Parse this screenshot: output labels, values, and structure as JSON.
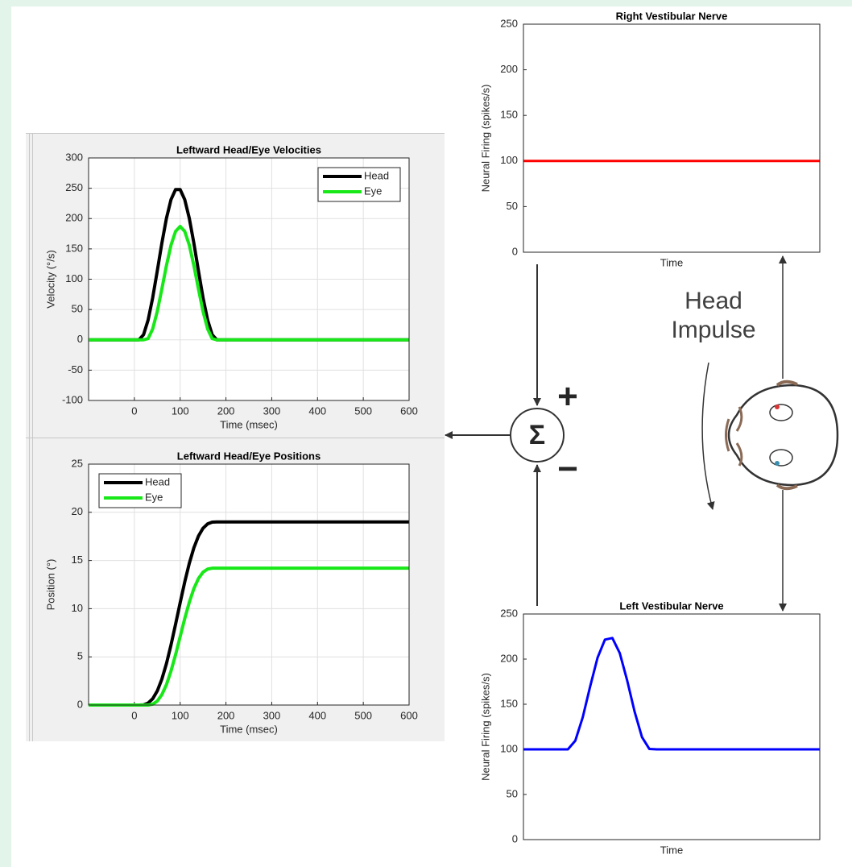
{
  "chart_data": [
    {
      "type": "line",
      "title": "Leftward  Head/Eye Velocities",
      "xlabel": "Time (msec)",
      "ylabel": "Velocity (°/s)",
      "x": [
        -100,
        0,
        10,
        20,
        30,
        40,
        50,
        60,
        70,
        80,
        90,
        100,
        110,
        120,
        130,
        140,
        150,
        160,
        170,
        180,
        600
      ],
      "series": [
        {
          "name": "Head",
          "color": "#000000",
          "values": [
            0,
            0,
            0,
            8.4,
            32.6,
            69.3,
            113.5,
            159.2,
            200.3,
            231.3,
            247.9,
            247.9,
            231.3,
            200.3,
            159.2,
            113.5,
            69.3,
            32.6,
            8.4,
            0,
            0
          ]
        },
        {
          "name": "Eye",
          "color": "#18e818",
          "values": [
            0,
            0,
            0,
            0,
            2.0,
            17.9,
            46.8,
            83.7,
            122.4,
            156.1,
            178.9,
            187,
            178.9,
            156.1,
            122.4,
            83.7,
            46.8,
            17.9,
            2.0,
            0,
            0
          ]
        }
      ],
      "xlim": [
        -100,
        600
      ],
      "xticks": [
        0,
        100,
        200,
        300,
        400,
        500,
        600
      ],
      "ylim": [
        -100,
        300
      ],
      "yticks": [
        -100,
        -50,
        0,
        50,
        100,
        150,
        200,
        250,
        300
      ],
      "grid": true,
      "legend": "upper right"
    },
    {
      "type": "line",
      "title": "Leftward  Head/Eye Positions",
      "xlabel": "Time (msec)",
      "ylabel": "Position (°)",
      "x": [
        -100,
        0,
        10,
        20,
        30,
        40,
        50,
        60,
        70,
        80,
        90,
        100,
        110,
        120,
        130,
        140,
        150,
        160,
        170,
        180,
        600
      ],
      "series": [
        {
          "name": "Head",
          "color": "#000000",
          "values": [
            0,
            0,
            0,
            0.02,
            0.2,
            0.65,
            1.46,
            2.68,
            4.29,
            6.23,
            8.39,
            10.61,
            12.77,
            14.71,
            16.32,
            17.54,
            18.35,
            18.8,
            18.98,
            19,
            19
          ]
        },
        {
          "name": "Eye",
          "color": "#18e818",
          "values": [
            0,
            0,
            0,
            0,
            0,
            0.09,
            0.41,
            1.07,
            2.11,
            3.53,
            5.23,
            7.1,
            8.97,
            10.67,
            12.09,
            13.13,
            13.79,
            14.11,
            14.2,
            14.2,
            14.2
          ]
        }
      ],
      "xlim": [
        -100,
        600
      ],
      "xticks": [
        0,
        100,
        200,
        300,
        400,
        500,
        600
      ],
      "ylim": [
        0,
        25
      ],
      "yticks": [
        0,
        5,
        10,
        15,
        20,
        25
      ],
      "grid": true,
      "legend": "upper left"
    },
    {
      "type": "line",
      "title": "Right Vestibular Nerve",
      "xlabel": "Time",
      "ylabel": "Neural Firing (spikes/s)",
      "values": [
        100,
        100
      ],
      "color": "#ff0000",
      "ylim": [
        0,
        250
      ],
      "yticks": [
        0,
        50,
        100,
        150,
        200,
        250
      ],
      "grid": false
    },
    {
      "type": "line",
      "title": "Left Vestibular Nerve",
      "xlabel": "Time",
      "ylabel": "Neural Firing (spikes/s)",
      "values": [
        100,
        100,
        100,
        100,
        100,
        100,
        100,
        109.6,
        135.4,
        169.5,
        201.5,
        221.6,
        223.4,
        206.7,
        176.4,
        141.9,
        113.6,
        100.4,
        100,
        100,
        100,
        100,
        100,
        100,
        100,
        100,
        100,
        100,
        100,
        100,
        100,
        100,
        100,
        100,
        100,
        100,
        100,
        100,
        100,
        100,
        100
      ],
      "color": "#0000ff",
      "ylim": [
        0,
        250
      ],
      "yticks": [
        0,
        50,
        100,
        150,
        200,
        250
      ],
      "grid": false
    }
  ],
  "diagram": {
    "sum": "Σ",
    "plus": "+",
    "minus": "−",
    "head_impulse": [
      "Head",
      "Impulse"
    ]
  }
}
